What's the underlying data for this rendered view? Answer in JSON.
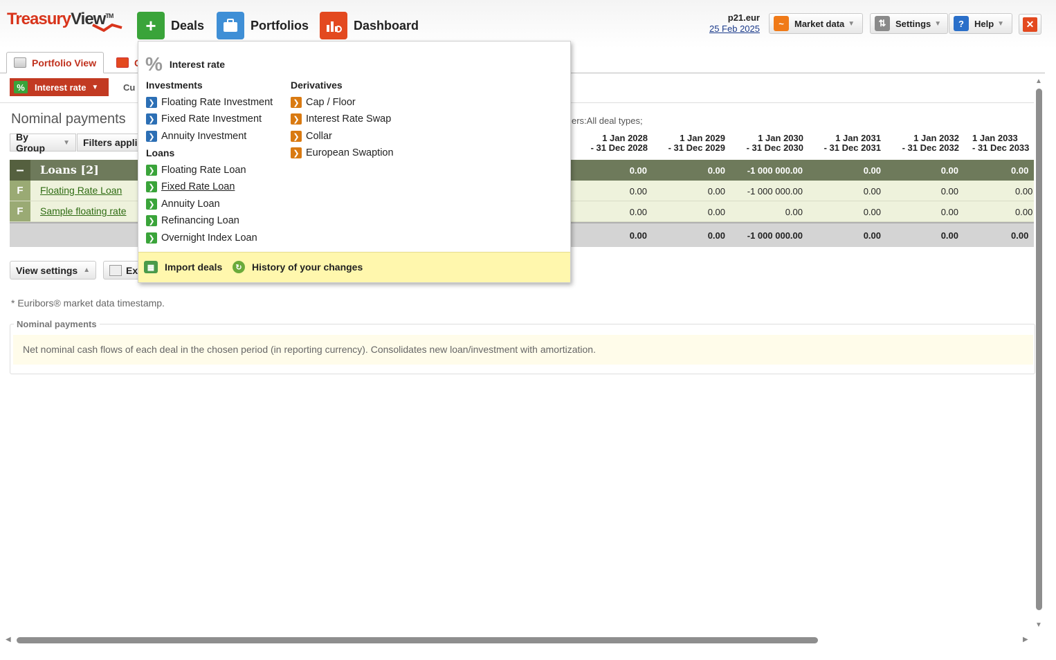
{
  "app": {
    "logo_main": "Treasury",
    "logo_view": "View",
    "logo_tm": "TM"
  },
  "nav": {
    "deals": "Deals",
    "portfolios": "Portfolios",
    "dashboard": "Dashboard"
  },
  "user": {
    "name": "p21.eur",
    "date": "25 Feb 2025"
  },
  "toolbar": {
    "market_data": "Market data",
    "settings": "Settings",
    "help": "Help"
  },
  "tabs": {
    "portfolio_view": "Portfolio View",
    "second_tab": "C"
  },
  "subbar": {
    "interest_rate": "Interest rate",
    "currency_label": "Cu"
  },
  "page": {
    "title": "Nominal payments",
    "filter_note": "ers:All deal types;",
    "by_group": "By Group",
    "filters": "Filters appli"
  },
  "table": {
    "columns": [
      {
        "l1": "1 Jan 2028",
        "l2": "- 31 Dec 2028"
      },
      {
        "l1": "1 Jan 2029",
        "l2": "- 31 Dec 2029"
      },
      {
        "l1": "1 Jan 2030",
        "l2": "- 31 Dec 2030"
      },
      {
        "l1": "1 Jan 2031",
        "l2": "- 31 Dec 2031"
      },
      {
        "l1": "1 Jan 2032",
        "l2": "- 31 Dec 2032"
      },
      {
        "l1": "1 Jan 2033",
        "l2": "- 31 Dec 2033"
      }
    ],
    "group": {
      "flag": "–",
      "name": "Loans [2]",
      "values": [
        "0.00",
        "0.00",
        "-1 000 000.00",
        "0.00",
        "0.00",
        "0.00"
      ]
    },
    "rows": [
      {
        "flag": "F",
        "name": "Floating Rate Loan",
        "values": [
          "0.00",
          "0.00",
          "-1 000 000.00",
          "0.00",
          "0.00",
          "0.00"
        ]
      },
      {
        "flag": "F",
        "name": "Sample floating rate",
        "values": [
          "0.00",
          "0.00",
          "0.00",
          "0.00",
          "0.00",
          "0.00"
        ]
      }
    ],
    "total": {
      "values": [
        "0.00",
        "0.00",
        "-1 000 000.00",
        "0.00",
        "0.00",
        "0.00"
      ]
    }
  },
  "bottom": {
    "view_settings": "View settings",
    "export": "Ex",
    "footnote": "* Euribors® market data timestamp.",
    "info_legend": "Nominal payments",
    "info_text": "Net nominal cash flows of each deal in the chosen period (in reporting currency). Consolidates new loan/investment with amortization."
  },
  "dropdown": {
    "heading": "Interest rate",
    "investments_title": "Investments",
    "investments": [
      "Floating Rate Investment",
      "Fixed Rate Investment",
      "Annuity Investment"
    ],
    "loans_title": "Loans",
    "loans": [
      "Floating Rate Loan",
      "Fixed Rate Loan",
      "Annuity Loan",
      "Refinancing Loan",
      "Overnight Index Loan"
    ],
    "derivatives_title": "Derivatives",
    "derivatives": [
      "Cap / Floor",
      "Interest Rate Swap",
      "Collar",
      "European Swaption"
    ],
    "import_deals": "Import deals",
    "history": "History of your changes"
  },
  "colors": {
    "brand_red": "#c23a22",
    "deals_green": "#3aa43a",
    "portfolios_blue": "#3f8fd6",
    "dashboard_red": "#e3491f",
    "group_row": "#6e7a5b",
    "deal_row": "#eef2dc"
  }
}
